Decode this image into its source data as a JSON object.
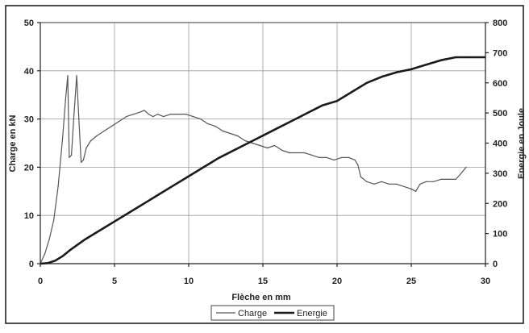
{
  "chart_data": {
    "type": "line",
    "title": "",
    "xlabel": "Flèche en mm",
    "ylabel": "Charge en kN",
    "y2label": "Energie en Joule",
    "xlim": [
      0,
      30
    ],
    "ylim": [
      0,
      50
    ],
    "y2lim": [
      0,
      800
    ],
    "x_ticks": [
      "0",
      "5",
      "10",
      "15",
      "20",
      "25",
      "30"
    ],
    "y_ticks": [
      "0",
      "10",
      "20",
      "30",
      "40",
      "50"
    ],
    "y2_ticks": [
      "0",
      "100",
      "200",
      "300",
      "400",
      "500",
      "600",
      "700",
      "800"
    ],
    "grid": true,
    "legend_position": "bottom",
    "series": [
      {
        "name": "Charge",
        "axis": "left",
        "color": "#555555",
        "x": [
          0,
          0.3,
          0.6,
          0.9,
          1.2,
          1.5,
          1.7,
          1.85,
          1.95,
          2.1,
          2.25,
          2.45,
          2.6,
          2.75,
          2.9,
          3.1,
          3.4,
          3.8,
          4.3,
          4.8,
          5.3,
          5.8,
          6.3,
          6.8,
          7.0,
          7.3,
          7.6,
          7.9,
          8.3,
          8.8,
          9.3,
          9.8,
          10.3,
          10.8,
          11.3,
          11.8,
          12.3,
          12.8,
          13.3,
          13.8,
          14.3,
          14.8,
          15.3,
          15.8,
          16.3,
          16.8,
          17.3,
          17.8,
          18.3,
          18.8,
          19.3,
          19.8,
          20.3,
          20.8,
          21.2,
          21.4,
          21.6,
          22.0,
          22.5,
          23.0,
          23.5,
          24.0,
          24.5,
          25.0,
          25.3,
          25.6,
          26.0,
          26.5,
          27.0,
          27.5,
          28.0,
          28.3,
          28.7
        ],
        "y": [
          0,
          2,
          5,
          9,
          16,
          26,
          34,
          39,
          22,
          22.5,
          30,
          39,
          30,
          21,
          21.5,
          24,
          25.5,
          26.5,
          27.5,
          28.5,
          29.5,
          30.5,
          31,
          31.5,
          31.8,
          31,
          30.5,
          31,
          30.5,
          31,
          31,
          31,
          30.5,
          30,
          29,
          28.5,
          27.5,
          27,
          26.5,
          25.5,
          25,
          24.5,
          24,
          24.5,
          23.5,
          23,
          23,
          23,
          22.5,
          22,
          22,
          21.5,
          22,
          22,
          21.5,
          20.5,
          18,
          17,
          16.5,
          17,
          16.5,
          16.5,
          16,
          15.5,
          15,
          16.5,
          17,
          17,
          17.5,
          17.5,
          17.5,
          18.5,
          20
        ]
      },
      {
        "name": "Energie",
        "axis": "right",
        "color": "#1a1a1a",
        "x": [
          0,
          0.5,
          1.0,
          1.5,
          2.0,
          3.0,
          4.0,
          5.0,
          6.0,
          7.0,
          8.0,
          9.0,
          10.0,
          11.0,
          12.0,
          13.0,
          14.0,
          15.0,
          16.0,
          17.0,
          18.0,
          19.0,
          20.0,
          21.0,
          22.0,
          23.0,
          24.0,
          25.0,
          26.0,
          27.0,
          28.0,
          29.0,
          30.0
        ],
        "y": [
          0,
          2,
          10,
          25,
          45,
          80,
          110,
          140,
          170,
          200,
          230,
          260,
          290,
          320,
          350,
          375,
          400,
          425,
          450,
          475,
          500,
          525,
          540,
          570,
          600,
          620,
          635,
          645,
          660,
          675,
          685,
          685,
          685
        ]
      }
    ]
  }
}
